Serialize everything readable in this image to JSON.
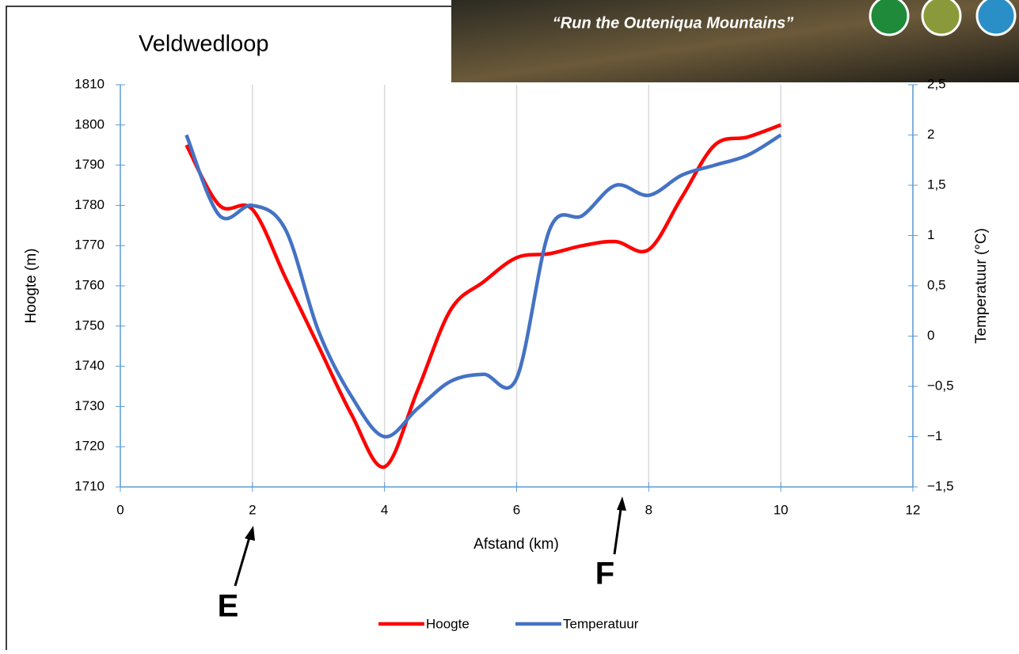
{
  "banner": "“Run the Outeniqua Mountains”",
  "chart_data": {
    "type": "line",
    "title": "Veldwedloop",
    "x_label": "Afstand (km)",
    "y_label": "Hoogte (m)",
    "y2_label": "Temperatuur (°C)",
    "x": [
      1,
      1.5,
      2,
      2.5,
      3,
      3.5,
      4,
      4.5,
      5,
      5.5,
      6,
      6.5,
      7,
      7.5,
      8,
      8.5,
      9,
      9.5,
      10
    ],
    "series": [
      {
        "name": "Hoogte",
        "color": "#ff0000",
        "values": [
          1795,
          1780,
          1779,
          1762,
          1745,
          1728,
          1715,
          1734,
          1754,
          1761,
          1767,
          1768,
          1770,
          1771,
          1769,
          1782,
          1795,
          1797,
          1800
        ]
      },
      {
        "name": "Temperatuur",
        "color": "#4472c4",
        "axis": "y2",
        "values": [
          2.0,
          1.2,
          1.3,
          1.06,
          0.05,
          -0.6,
          -1.0,
          -0.72,
          -0.45,
          -0.38,
          -0.42,
          1.06,
          1.2,
          1.5,
          1.4,
          1.6,
          1.7,
          1.8,
          2.0
        ]
      }
    ],
    "xlim": [
      0,
      12
    ],
    "xticks": [
      0,
      2,
      4,
      6,
      8,
      10,
      12
    ],
    "ylim": [
      1710,
      1810
    ],
    "yticks": [
      1710,
      1720,
      1730,
      1740,
      1750,
      1760,
      1770,
      1780,
      1790,
      1800,
      1810
    ],
    "y2lim": [
      -1.5,
      2.5
    ],
    "y2ticks": [
      {
        "value": -1.5,
        "label": "−1,5"
      },
      {
        "value": -1,
        "label": "−1"
      },
      {
        "value": -0.5,
        "label": "−0,5"
      },
      0,
      {
        "value": 0.5,
        "label": "0,5"
      },
      1,
      {
        "value": 1.5,
        "label": "1,5"
      },
      2,
      {
        "value": 2.5,
        "label": "2,5"
      }
    ],
    "grid": true,
    "legend": "bottom",
    "annotations": [
      "E",
      "F"
    ]
  }
}
